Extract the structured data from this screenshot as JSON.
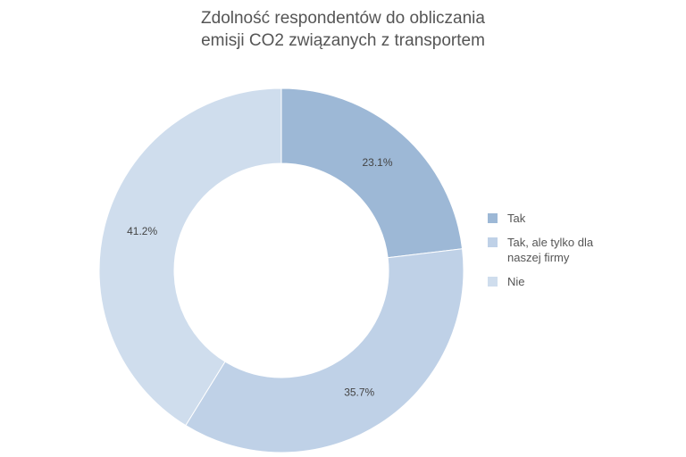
{
  "chart_data": {
    "type": "pie",
    "title": [
      "Zdolność respondentów do obliczania",
      "emisji CO2 związanych z transportem"
    ],
    "categories": [
      "Tak",
      "Tak, ale tylko dla naszej firmy",
      "Nie"
    ],
    "legend_lines": [
      [
        "Tak"
      ],
      [
        "Tak, ale tylko dla",
        "naszej firmy"
      ],
      [
        "Nie"
      ]
    ],
    "values": [
      23.1,
      35.7,
      41.2
    ],
    "labels": [
      "23.1%",
      "35.7%",
      "41.2%"
    ],
    "colors": [
      "#9db8d6",
      "#bfd1e7",
      "#cfdded"
    ],
    "donut": true,
    "legend": "right"
  }
}
